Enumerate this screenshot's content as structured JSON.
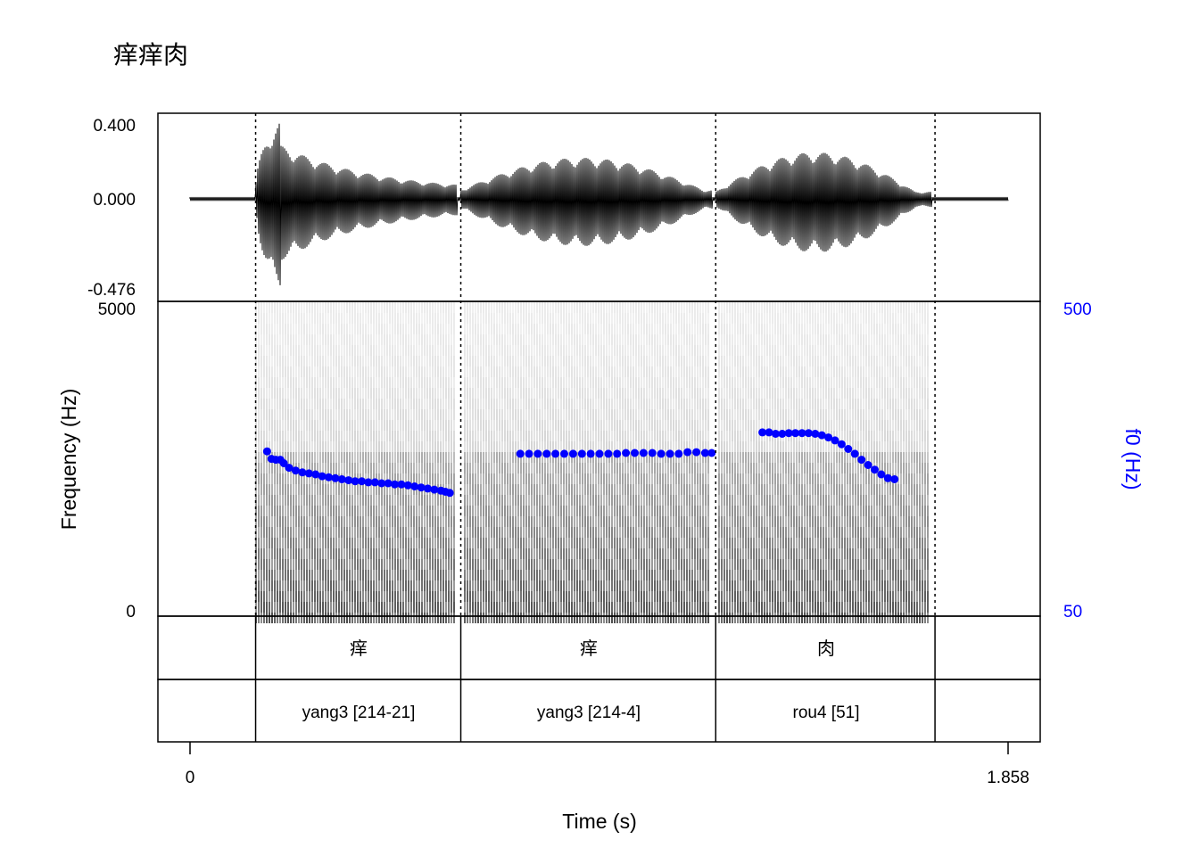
{
  "title": "痒痒肉",
  "colors": {
    "f0": "#0000ff",
    "axis": "#000000",
    "spectrogram": "#000000"
  },
  "waveform": {
    "ticks": [
      "0.400",
      "0.000",
      "-0.476"
    ],
    "ylim": [
      -0.476,
      0.4
    ]
  },
  "spectrogram": {
    "ylabel": "Frequency (Hz)",
    "ticks": [
      "5000",
      "0"
    ],
    "ylim": [
      0,
      5000
    ]
  },
  "f0_axis": {
    "label": "f0 (Hz)",
    "ticks": [
      "500",
      "50"
    ],
    "ylim": [
      50,
      500
    ],
    "scale": "log"
  },
  "time_axis": {
    "label": "Time (s)",
    "ticks": [
      "0",
      "1.858"
    ],
    "xlim": [
      0,
      1.858
    ]
  },
  "tiers": [
    {
      "name": "characters",
      "labels": [
        "痒",
        "痒",
        "肉"
      ]
    },
    {
      "name": "tones",
      "labels": [
        "yang3 [214-21]",
        "yang3 [214-4]",
        "rou4 [51]"
      ]
    }
  ],
  "chart_data": {
    "type": "line",
    "title": "痒痒肉",
    "xlabel": "Time (s)",
    "ylabel": "Frequency (Hz)",
    "y2label": "f0 (Hz)",
    "xlim": [
      0,
      1.858
    ],
    "boundaries": [
      0.149,
      0.615,
      1.194,
      1.692
    ],
    "segments": [
      {
        "label": "痒",
        "tone": "yang3 [214-21]",
        "start": 0.149,
        "end": 0.615
      },
      {
        "label": "痒",
        "tone": "yang3 [214-4]",
        "start": 0.615,
        "end": 1.194
      },
      {
        "label": "肉",
        "tone": "rou4 [51]",
        "start": 1.194,
        "end": 1.692
      }
    ],
    "series": [
      {
        "name": "f0",
        "unit": "Hz",
        "points": [
          [
            0.175,
            167
          ],
          [
            0.185,
            158
          ],
          [
            0.195,
            157
          ],
          [
            0.205,
            157
          ],
          [
            0.213,
            153
          ],
          [
            0.225,
            148
          ],
          [
            0.24,
            145
          ],
          [
            0.255,
            143
          ],
          [
            0.27,
            142
          ],
          [
            0.285,
            141
          ],
          [
            0.3,
            139
          ],
          [
            0.315,
            138
          ],
          [
            0.33,
            137
          ],
          [
            0.345,
            136
          ],
          [
            0.36,
            135
          ],
          [
            0.375,
            134
          ],
          [
            0.39,
            134
          ],
          [
            0.405,
            133
          ],
          [
            0.42,
            133
          ],
          [
            0.435,
            132
          ],
          [
            0.45,
            132
          ],
          [
            0.465,
            131
          ],
          [
            0.48,
            131
          ],
          [
            0.495,
            130
          ],
          [
            0.51,
            129
          ],
          [
            0.525,
            128
          ],
          [
            0.54,
            127
          ],
          [
            0.555,
            126
          ],
          [
            0.57,
            125
          ],
          [
            0.58,
            124
          ],
          [
            0.59,
            123
          ],
          [
            0.75,
            164
          ],
          [
            0.77,
            164
          ],
          [
            0.79,
            164
          ],
          [
            0.81,
            164
          ],
          [
            0.83,
            164
          ],
          [
            0.85,
            164
          ],
          [
            0.87,
            164
          ],
          [
            0.89,
            164
          ],
          [
            0.91,
            164
          ],
          [
            0.93,
            164
          ],
          [
            0.95,
            164
          ],
          [
            0.97,
            164
          ],
          [
            0.99,
            165
          ],
          [
            1.01,
            165
          ],
          [
            1.03,
            165
          ],
          [
            1.05,
            165
          ],
          [
            1.07,
            164
          ],
          [
            1.09,
            164
          ],
          [
            1.11,
            164
          ],
          [
            1.13,
            166
          ],
          [
            1.15,
            166
          ],
          [
            1.17,
            165
          ],
          [
            1.185,
            165
          ],
          [
            1.3,
            192
          ],
          [
            1.315,
            192
          ],
          [
            1.33,
            190
          ],
          [
            1.345,
            190
          ],
          [
            1.36,
            191
          ],
          [
            1.375,
            191
          ],
          [
            1.39,
            191
          ],
          [
            1.405,
            191
          ],
          [
            1.42,
            190
          ],
          [
            1.435,
            188
          ],
          [
            1.45,
            185
          ],
          [
            1.465,
            181
          ],
          [
            1.48,
            176
          ],
          [
            1.495,
            170
          ],
          [
            1.51,
            164
          ],
          [
            1.525,
            157
          ],
          [
            1.54,
            151
          ],
          [
            1.555,
            146
          ],
          [
            1.57,
            141
          ],
          [
            1.585,
            137
          ],
          [
            1.6,
            136
          ]
        ]
      }
    ]
  }
}
